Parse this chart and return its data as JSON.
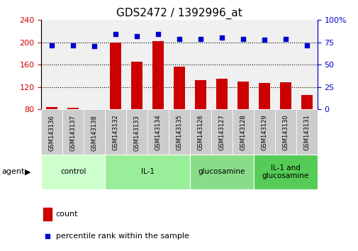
{
  "title": "GDS2472 / 1392996_at",
  "samples": [
    "GSM143136",
    "GSM143137",
    "GSM143138",
    "GSM143132",
    "GSM143133",
    "GSM143134",
    "GSM143135",
    "GSM143126",
    "GSM143127",
    "GSM143128",
    "GSM143129",
    "GSM143130",
    "GSM143131"
  ],
  "counts": [
    84,
    83,
    80,
    200,
    165,
    202,
    156,
    132,
    135,
    130,
    127,
    128,
    105
  ],
  "percentiles": [
    72,
    72,
    71,
    84,
    82,
    84,
    79,
    79,
    80,
    79,
    78,
    79,
    72
  ],
  "groups": [
    {
      "label": "control",
      "start": 0,
      "end": 3,
      "color": "#ccffcc"
    },
    {
      "label": "IL-1",
      "start": 3,
      "end": 7,
      "color": "#99ee99"
    },
    {
      "label": "glucosamine",
      "start": 7,
      "end": 10,
      "color": "#88dd88"
    },
    {
      "label": "IL-1 and\nglucosamine",
      "start": 10,
      "end": 13,
      "color": "#55cc55"
    }
  ],
  "bar_color": "#cc0000",
  "dot_color": "#0000cc",
  "ylim_left": [
    80,
    240
  ],
  "ylim_right": [
    0,
    100
  ],
  "yticks_left": [
    80,
    120,
    160,
    200,
    240
  ],
  "yticks_right": [
    0,
    25,
    50,
    75,
    100
  ],
  "left_tick_color": "#cc0000",
  "right_tick_color": "#0000cc",
  "plot_bg_color": "#f0f0f0",
  "xtick_bg_color": "#cccccc",
  "legend_count_label": "count",
  "legend_pct_label": "percentile rank within the sample",
  "agent_label": "agent"
}
